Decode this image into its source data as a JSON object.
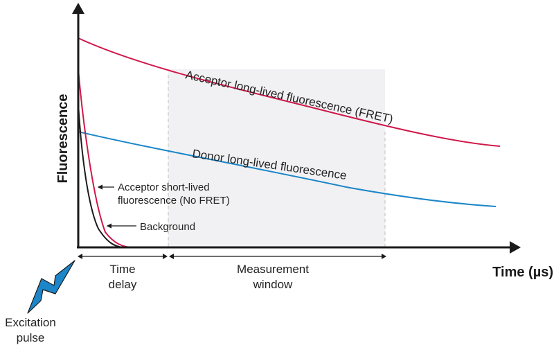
{
  "colors": {
    "acceptor": "#d0174a",
    "donor": "#1c86c8",
    "background_curve": "#1a1a1a",
    "window_fill": "#f1f1f3",
    "pulse": "#1c86c8",
    "axis": "#1a1a1a"
  },
  "axes": {
    "y_label": "Fluorescence",
    "x_label": "Time (µs)"
  },
  "curves": {
    "acceptor_long": "Acceptor long-lived fluorescence (FRET)",
    "donor_long": "Donor long-lived fluorescence",
    "acceptor_short_line1": "Acceptor short-lived",
    "acceptor_short_line2": "fluorescence (No FRET)",
    "background": "Background"
  },
  "regions": {
    "delay_line1": "Time",
    "delay_line2": "delay",
    "window_line1": "Measurement",
    "window_line2": "window"
  },
  "pulse": {
    "icon": "lightning-bolt-icon",
    "line1": "Excitation",
    "line2": "pulse"
  }
}
